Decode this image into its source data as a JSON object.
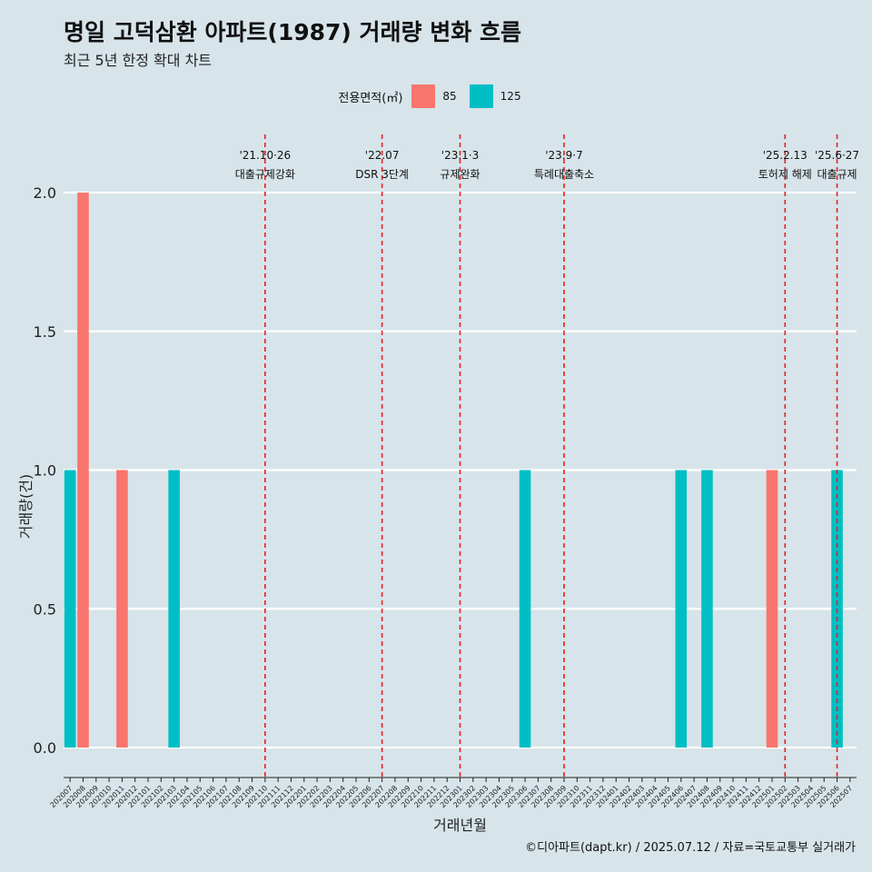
{
  "title": "명일 고덕삼환 아파트(1987) 거래량 변화 흐름",
  "subtitle": "최근 5년 한정 확대 차트",
  "caption": "©디아파트(dapt.kr) / 2025.07.12 / 자료=국토교통부 실거래가",
  "legend": {
    "title": "전용면적(㎡)",
    "items": [
      {
        "label": "85",
        "color": "#f8766d"
      },
      {
        "label": "125",
        "color": "#00bfc4"
      }
    ]
  },
  "chart_data": {
    "type": "bar",
    "xlabel": "거래년월",
    "ylabel": "거래량(건)",
    "ylim": [
      0,
      2.1
    ],
    "yticks": [
      "0.0",
      "0.5",
      "1.0",
      "1.5",
      "2.0"
    ],
    "grid": true,
    "legend_position": "top",
    "categories": [
      "202007",
      "202008",
      "202009",
      "202010",
      "202011",
      "202012",
      "202101",
      "202102",
      "202103",
      "202104",
      "202105",
      "202106",
      "202107",
      "202108",
      "202109",
      "202110",
      "202111",
      "202112",
      "202201",
      "202202",
      "202203",
      "202204",
      "202205",
      "202206",
      "202207",
      "202208",
      "202209",
      "202210",
      "202211",
      "202212",
      "202301",
      "202302",
      "202303",
      "202304",
      "202305",
      "202306",
      "202307",
      "202308",
      "202309",
      "202310",
      "202311",
      "202312",
      "202401",
      "202402",
      "202403",
      "202404",
      "202405",
      "202406",
      "202407",
      "202408",
      "202409",
      "202410",
      "202411",
      "202412",
      "202501",
      "202502",
      "202503",
      "202504",
      "202505",
      "202506",
      "202507"
    ],
    "bars": [
      {
        "month": "202007",
        "series": "125",
        "value": 1
      },
      {
        "month": "202008",
        "series": "85",
        "value": 2
      },
      {
        "month": "202011",
        "series": "85",
        "value": 1
      },
      {
        "month": "202103",
        "series": "125",
        "value": 1
      },
      {
        "month": "202306",
        "series": "125",
        "value": 1
      },
      {
        "month": "202406",
        "series": "125",
        "value": 1
      },
      {
        "month": "202408",
        "series": "125",
        "value": 1
      },
      {
        "month": "202501",
        "series": "85",
        "value": 1
      },
      {
        "month": "202506",
        "series": "125",
        "value": 1
      }
    ],
    "events": [
      {
        "month": "202110",
        "date": "'21.10·26",
        "label": "대출규제강화"
      },
      {
        "month": "202207",
        "date": "'22.07",
        "label": "DSR 3단계"
      },
      {
        "month": "202301",
        "date": "'23.1·3",
        "label": "규제완화"
      },
      {
        "month": "202309",
        "date": "'23.9·7",
        "label": "특례대출축소"
      },
      {
        "month": "202502",
        "date": "'25.2.13",
        "label": "토허제 해제"
      },
      {
        "month": "202506",
        "date": "'25.6·27",
        "label": "대출규제"
      }
    ]
  }
}
